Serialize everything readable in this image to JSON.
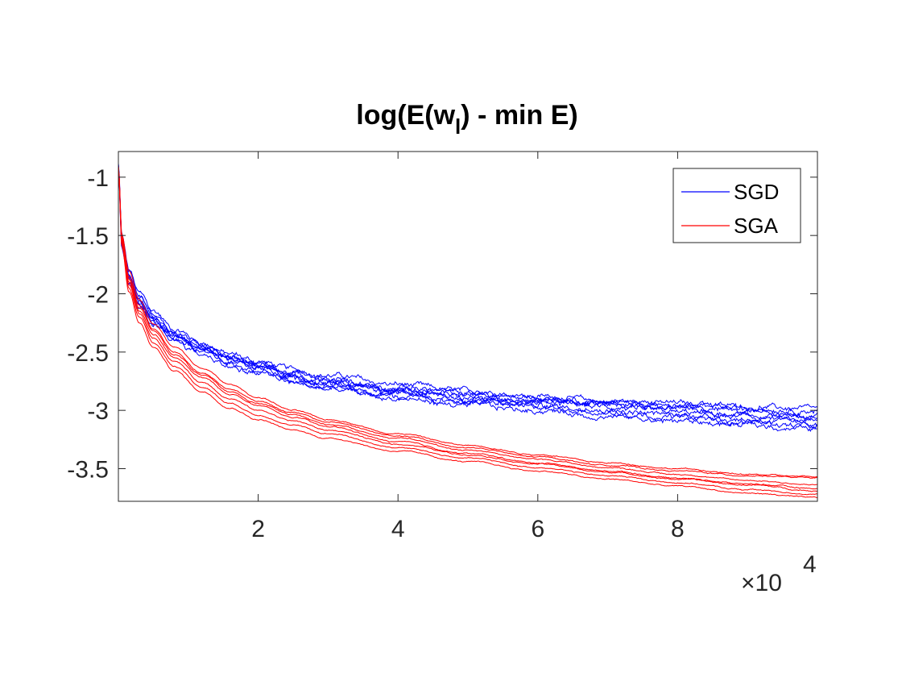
{
  "chart_data": {
    "type": "line",
    "title": {
      "prefix": "log(E(w",
      "subscript": "l",
      "suffix": ") - min E)"
    },
    "xlabel": "",
    "ylabel": "",
    "x_exponent_label": {
      "multiplier": "×10",
      "exponent": "4"
    },
    "xlim": [
      0,
      100000
    ],
    "ylim": [
      -3.78,
      -0.78
    ],
    "x_ticks": [
      20000,
      40000,
      60000,
      80000
    ],
    "x_tick_labels": [
      "2",
      "4",
      "6",
      "8"
    ],
    "y_ticks": [
      -1,
      -1.5,
      -2,
      -2.5,
      -3,
      -3.5
    ],
    "y_tick_labels": [
      "-1",
      "-1.5",
      "-2",
      "-2.5",
      "-3",
      "-3.5"
    ],
    "grid": false,
    "legend": {
      "placement": "top-right",
      "entries": [
        {
          "label": "SGD",
          "color": "#0000ff"
        },
        {
          "label": "SGA",
          "color": "#ff0000"
        }
      ]
    },
    "series": [
      {
        "group": "SGD",
        "color": "#0000ff",
        "runs": [
          {
            "x": [
              0,
              500,
              1500,
              3000,
              5000,
              8000,
              12000,
              16000,
              20000,
              25000,
              30000,
              40000,
              50000,
              60000,
              70000,
              80000,
              90000,
              100000
            ],
            "y": [
              -0.88,
              -1.5,
              -1.8,
              -2.0,
              -2.15,
              -2.3,
              -2.42,
              -2.52,
              -2.58,
              -2.65,
              -2.7,
              -2.78,
              -2.84,
              -2.88,
              -2.92,
              -2.94,
              -2.97,
              -2.99
            ]
          },
          {
            "x": [
              0,
              500,
              1500,
              3000,
              5000,
              8000,
              12000,
              16000,
              20000,
              25000,
              30000,
              40000,
              50000,
              60000,
              70000,
              80000,
              90000,
              100000
            ],
            "y": [
              -0.9,
              -1.55,
              -1.85,
              -2.05,
              -2.2,
              -2.35,
              -2.45,
              -2.55,
              -2.62,
              -2.7,
              -2.75,
              -2.82,
              -2.88,
              -2.93,
              -2.97,
              -3.02,
              -3.06,
              -3.1
            ]
          },
          {
            "x": [
              0,
              500,
              1500,
              3000,
              5000,
              8000,
              12000,
              16000,
              20000,
              25000,
              30000,
              40000,
              50000,
              60000,
              70000,
              80000,
              90000,
              100000
            ],
            "y": [
              -0.89,
              -1.6,
              -1.9,
              -2.1,
              -2.25,
              -2.38,
              -2.5,
              -2.6,
              -2.66,
              -2.74,
              -2.8,
              -2.88,
              -2.93,
              -2.97,
              -3.01,
              -3.06,
              -3.1,
              -3.14
            ]
          },
          {
            "x": [
              0,
              500,
              1500,
              3000,
              5000,
              8000,
              12000,
              16000,
              20000,
              25000,
              30000,
              40000,
              50000,
              60000,
              70000,
              80000,
              90000,
              100000
            ],
            "y": [
              -0.91,
              -1.52,
              -1.82,
              -2.02,
              -2.17,
              -2.32,
              -2.44,
              -2.54,
              -2.6,
              -2.68,
              -2.74,
              -2.8,
              -2.85,
              -2.89,
              -2.93,
              -2.96,
              -2.98,
              -3.0
            ]
          },
          {
            "x": [
              0,
              500,
              1500,
              3000,
              5000,
              8000,
              12000,
              16000,
              20000,
              25000,
              30000,
              40000,
              50000,
              60000,
              70000,
              80000,
              90000,
              100000
            ],
            "y": [
              -0.9,
              -1.58,
              -1.88,
              -2.08,
              -2.23,
              -2.37,
              -2.48,
              -2.57,
              -2.64,
              -2.72,
              -2.78,
              -2.86,
              -2.92,
              -2.96,
              -3.0,
              -3.04,
              -3.08,
              -3.12
            ]
          },
          {
            "x": [
              0,
              500,
              1500,
              3000,
              5000,
              8000,
              12000,
              16000,
              20000,
              25000,
              30000,
              40000,
              50000,
              60000,
              70000,
              80000,
              90000,
              100000
            ],
            "y": [
              -0.92,
              -1.62,
              -1.92,
              -2.12,
              -2.27,
              -2.4,
              -2.52,
              -2.62,
              -2.68,
              -2.76,
              -2.82,
              -2.9,
              -2.96,
              -3.0,
              -3.05,
              -3.09,
              -3.13,
              -3.16
            ]
          },
          {
            "x": [
              0,
              500,
              1500,
              3000,
              5000,
              8000,
              12000,
              16000,
              20000,
              25000,
              30000,
              40000,
              50000,
              60000,
              70000,
              80000,
              90000,
              100000
            ],
            "y": [
              -0.89,
              -1.54,
              -1.84,
              -2.04,
              -2.19,
              -2.33,
              -2.46,
              -2.56,
              -2.61,
              -2.69,
              -2.76,
              -2.84,
              -2.89,
              -2.92,
              -2.95,
              -2.99,
              -3.03,
              -3.06
            ]
          },
          {
            "x": [
              0,
              500,
              1500,
              3000,
              5000,
              8000,
              12000,
              16000,
              20000,
              25000,
              30000,
              40000,
              50000,
              60000,
              70000,
              80000,
              90000,
              100000
            ],
            "y": [
              -0.91,
              -1.56,
              -1.86,
              -2.06,
              -2.21,
              -2.36,
              -2.47,
              -2.58,
              -2.63,
              -2.71,
              -2.77,
              -2.83,
              -2.87,
              -2.91,
              -2.94,
              -2.97,
              -3.01,
              -3.04
            ]
          }
        ]
      },
      {
        "group": "SGA",
        "color": "#ff0000",
        "runs": [
          {
            "x": [
              0,
              500,
              1500,
              3000,
              5000,
              8000,
              12000,
              16000,
              20000,
              25000,
              30000,
              40000,
              50000,
              60000,
              70000,
              80000,
              90000,
              100000
            ],
            "y": [
              -0.9,
              -1.5,
              -1.85,
              -2.1,
              -2.3,
              -2.5,
              -2.68,
              -2.82,
              -2.92,
              -3.02,
              -3.1,
              -3.22,
              -3.32,
              -3.4,
              -3.47,
              -3.52,
              -3.56,
              -3.58
            ]
          },
          {
            "x": [
              0,
              500,
              1500,
              3000,
              5000,
              8000,
              12000,
              16000,
              20000,
              25000,
              30000,
              40000,
              50000,
              60000,
              70000,
              80000,
              90000,
              100000
            ],
            "y": [
              -0.92,
              -1.55,
              -1.9,
              -2.15,
              -2.35,
              -2.55,
              -2.72,
              -2.86,
              -2.96,
              -3.06,
              -3.14,
              -3.27,
              -3.37,
              -3.45,
              -3.52,
              -3.58,
              -3.63,
              -3.67
            ]
          },
          {
            "x": [
              0,
              500,
              1500,
              3000,
              5000,
              8000,
              12000,
              16000,
              20000,
              25000,
              30000,
              40000,
              50000,
              60000,
              70000,
              80000,
              90000,
              100000
            ],
            "y": [
              -0.91,
              -1.58,
              -1.95,
              -2.2,
              -2.42,
              -2.62,
              -2.8,
              -2.94,
              -3.04,
              -3.13,
              -3.2,
              -3.32,
              -3.41,
              -3.49,
              -3.56,
              -3.62,
              -3.68,
              -3.72
            ]
          },
          {
            "x": [
              0,
              500,
              1500,
              3000,
              5000,
              8000,
              12000,
              16000,
              20000,
              25000,
              30000,
              40000,
              50000,
              60000,
              70000,
              80000,
              90000,
              100000
            ],
            "y": [
              -0.9,
              -1.52,
              -1.88,
              -2.12,
              -2.32,
              -2.52,
              -2.7,
              -2.84,
              -2.94,
              -3.04,
              -3.12,
              -3.24,
              -3.34,
              -3.42,
              -3.49,
              -3.55,
              -3.6,
              -3.64
            ]
          },
          {
            "x": [
              0,
              500,
              1500,
              3000,
              5000,
              8000,
              12000,
              16000,
              20000,
              25000,
              30000,
              40000,
              50000,
              60000,
              70000,
              80000,
              90000,
              100000
            ],
            "y": [
              -0.93,
              -1.6,
              -1.98,
              -2.25,
              -2.46,
              -2.66,
              -2.84,
              -2.98,
              -3.08,
              -3.17,
              -3.24,
              -3.35,
              -3.44,
              -3.52,
              -3.59,
              -3.65,
              -3.71,
              -3.75
            ]
          },
          {
            "x": [
              0,
              500,
              1500,
              3000,
              5000,
              8000,
              12000,
              16000,
              20000,
              25000,
              30000,
              40000,
              50000,
              60000,
              70000,
              80000,
              90000,
              100000
            ],
            "y": [
              -0.91,
              -1.54,
              -1.92,
              -2.17,
              -2.38,
              -2.58,
              -2.76,
              -2.9,
              -3.0,
              -3.09,
              -3.17,
              -3.29,
              -3.38,
              -3.46,
              -3.53,
              -3.59,
              -3.64,
              -3.69
            ]
          },
          {
            "x": [
              0,
              500,
              1500,
              3000,
              5000,
              8000,
              12000,
              16000,
              20000,
              25000,
              30000,
              40000,
              50000,
              60000,
              70000,
              80000,
              90000,
              100000
            ],
            "y": [
              -0.92,
              -1.5,
              -1.8,
              -2.05,
              -2.26,
              -2.46,
              -2.64,
              -2.78,
              -2.89,
              -3.0,
              -3.08,
              -3.2,
              -3.3,
              -3.38,
              -3.45,
              -3.5,
              -3.55,
              -3.57
            ]
          }
        ]
      }
    ]
  }
}
